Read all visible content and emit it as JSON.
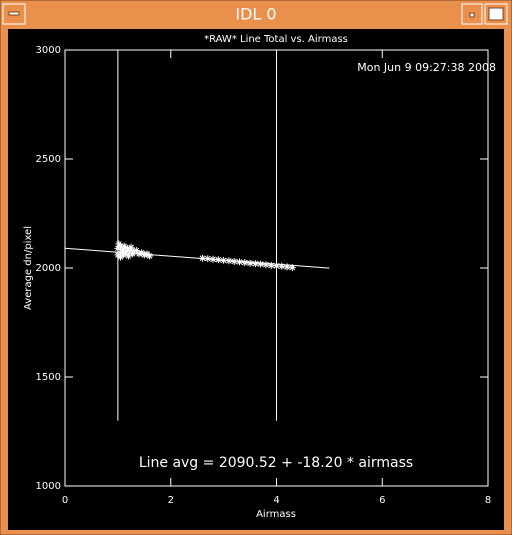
{
  "window": {
    "title": "IDL 0"
  },
  "chart_data": {
    "type": "scatter",
    "title": "*RAW* Line Total vs. Airmass",
    "annotations": [
      "Mon Jun  9 09:27:38 2008",
      "Line avg = 2090.52 + -18.20 * airmass"
    ],
    "xlabel": "Airmass",
    "ylabel": "Average dn/pixel",
    "xlim": [
      0,
      8
    ],
    "xticks": [
      0,
      2,
      4,
      6,
      8
    ],
    "ylim": [
      1000,
      3000
    ],
    "yticks": [
      1000,
      1500,
      2000,
      2500,
      3000
    ],
    "color": "#ffffff",
    "series": [
      {
        "x": [
          1.0,
          1.0,
          1.02,
          1.05,
          1.05,
          1.08,
          1.1,
          1.1,
          1.12,
          1.15,
          1.18,
          1.2,
          1.22,
          1.25,
          1.28,
          1.3,
          1.35,
          1.4,
          1.45,
          1.5,
          1.55,
          1.6,
          2.6,
          2.7,
          2.8,
          2.9,
          3.0,
          3.1,
          3.2,
          3.3,
          3.4,
          3.5,
          3.6,
          3.7,
          3.8,
          3.9,
          4.0,
          4.1,
          4.2,
          4.3
        ],
        "values": [
          2060,
          2090,
          2110,
          2050,
          2100,
          2075,
          2085,
          2060,
          2100,
          2070,
          2090,
          2055,
          2080,
          2095,
          2065,
          2075,
          2080,
          2065,
          2070,
          2060,
          2065,
          2055,
          2045,
          2043,
          2040,
          2038,
          2035,
          2033,
          2030,
          2028,
          2025,
          2022,
          2020,
          2018,
          2015,
          2012,
          2010,
          2008,
          2005,
          2002
        ]
      }
    ],
    "fit": {
      "x": [
        0,
        5
      ],
      "values": [
        2090.52,
        1999.52
      ]
    },
    "vlines": [
      {
        "x": 1,
        "values": [
          1300,
          3000
        ]
      },
      {
        "x": 4,
        "values": [
          1300,
          3000
        ]
      }
    ]
  }
}
